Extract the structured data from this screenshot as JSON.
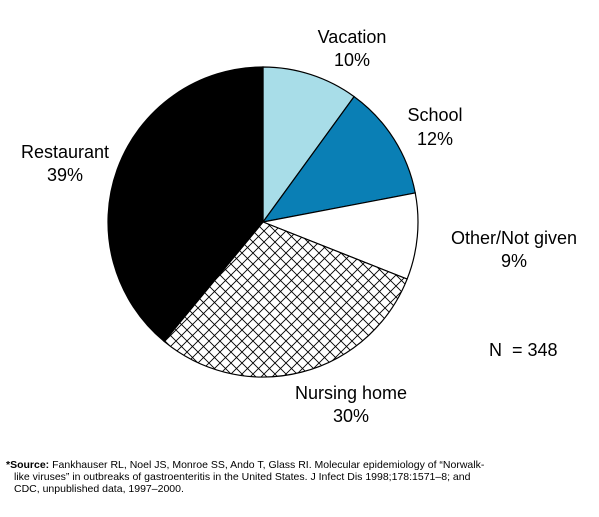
{
  "chart_data": {
    "type": "pie",
    "title": "",
    "total_label": "N  = 348",
    "slices": [
      {
        "name": "Vacation",
        "value": 10,
        "label": "10%",
        "color": "#a8dde8",
        "pattern": "solid"
      },
      {
        "name": "School",
        "value": 12,
        "label": "12%",
        "color": "#0a7fb5",
        "pattern": "solid"
      },
      {
        "name": "Other/Not given",
        "value": 9,
        "label": "9%",
        "color": "#ffffff",
        "pattern": "solid"
      },
      {
        "name": "Nursing home",
        "value": 30,
        "label": "30%",
        "color": "#ffffff",
        "pattern": "crosshatch"
      },
      {
        "name": "Restaurant",
        "value": 39,
        "label": "39%",
        "color": "#000000",
        "pattern": "solid"
      }
    ],
    "start_angle": "12 o'clock",
    "direction": "clockwise"
  },
  "footnote": {
    "lead": "*Source:",
    "line1": " Fankhauser RL, Noel JS, Monroe SS, Ando T, Glass RI. Molecular epidemiology of “Norwalk-",
    "line2": "like viruses” in outbreaks of gastroenteritis in the United States. J Infect Dis 1998;178:1571–8; and",
    "line3": "CDC, unpublished data, 1997–2000."
  }
}
